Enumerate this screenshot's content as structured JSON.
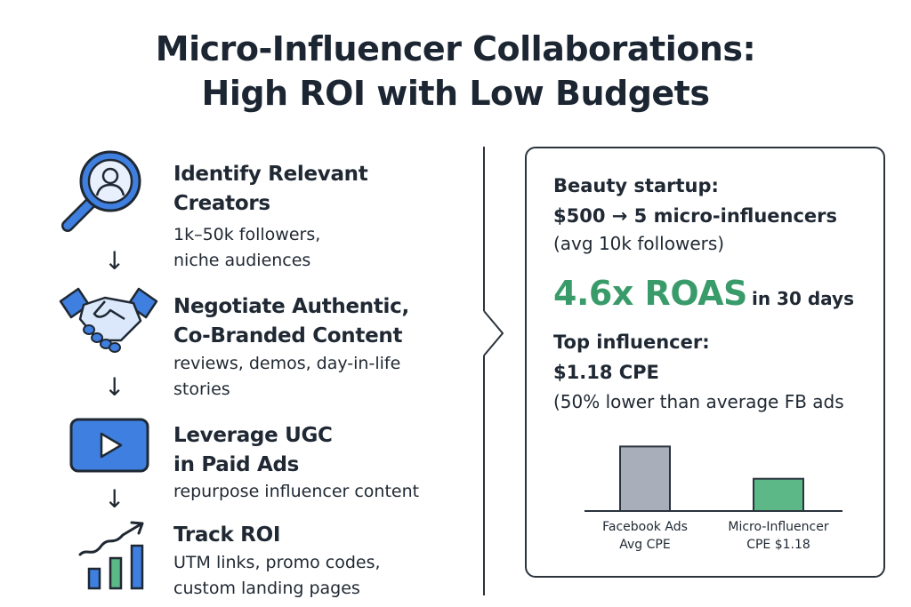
{
  "title": {
    "line1": "Micro-Influencer Collaborations:",
    "line2": "High ROI with Low Budgets"
  },
  "steps": [
    {
      "icon": "magnifier-person-icon",
      "heading_lines": [
        "Identify Relevant",
        "Creators"
      ],
      "desc_lines": [
        "1k–50k followers,",
        "niche audiences"
      ]
    },
    {
      "icon": "handshake-icon",
      "heading_lines": [
        "Negotiate Authentic,",
        "Co-Branded Content"
      ],
      "desc_lines": [
        "reviews, demos, day-in-life",
        "stories"
      ]
    },
    {
      "icon": "video-play-icon",
      "heading_lines": [
        "Leverage UGC",
        "in Paid Ads"
      ],
      "desc_lines": [
        "repurpose influencer content"
      ]
    },
    {
      "icon": "growth-chart-icon",
      "heading_lines": [
        "Track ROI"
      ],
      "desc_lines": [
        "UTM links, promo codes,",
        "custom landing pages"
      ]
    }
  ],
  "arrow_glyph": "↓",
  "case_study": {
    "subject": "Beauty startup:",
    "spend": "$500 → 5 micro-influencers",
    "avg": "(avg 10k followers)",
    "roas_value": "4.6x ROAS",
    "roas_period": "in 30 days",
    "top_label": "Top influencer:",
    "top_cpe": "$1.18 CPE",
    "comparison": "(50% lower than average FB ads"
  },
  "chart_data": {
    "type": "bar",
    "categories": [
      "Facebook Ads\nAvg CPE",
      "Micro-Influencer\nCPE $1.18"
    ],
    "category_lines": [
      [
        "Facebook Ads",
        "Avg CPE"
      ],
      [
        "Micro-Influencer",
        "CPE $1.18"
      ]
    ],
    "values": [
      2.36,
      1.18
    ],
    "colors": [
      "#a9aebb",
      "#5cb887"
    ],
    "ylim": [
      0,
      2.6
    ],
    "title": "",
    "xlabel": "",
    "ylabel": ""
  },
  "colors": {
    "accent_blue": "#3f7fe0",
    "accent_green": "#3a9b6a",
    "text_dark": "#1f2833"
  }
}
